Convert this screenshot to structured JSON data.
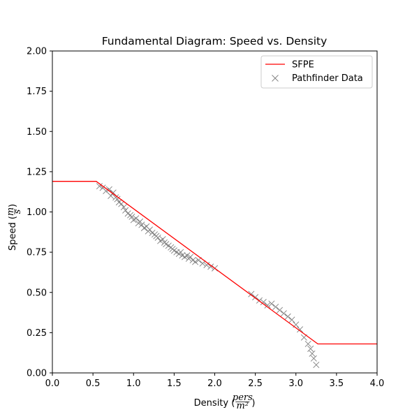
{
  "chart_data": {
    "type": "line+scatter",
    "title": "Fundamental Diagram: Speed vs. Density",
    "xlabel": {
      "prefix": "Density (",
      "numerator": "pers",
      "denominator": "m²",
      "suffix": ")"
    },
    "ylabel": {
      "prefix": "Speed (",
      "numerator": "m",
      "denominator": "s",
      "suffix": ")"
    },
    "xlim": [
      0.0,
      4.0
    ],
    "ylim": [
      0.0,
      2.0
    ],
    "xticks": [
      0.0,
      0.5,
      1.0,
      1.5,
      2.0,
      2.5,
      3.0,
      3.5,
      4.0
    ],
    "xtick_labels": [
      "0.0",
      "0.5",
      "1.0",
      "1.5",
      "2.0",
      "2.5",
      "3.0",
      "3.5",
      "4.0"
    ],
    "yticks": [
      0.0,
      0.25,
      0.5,
      0.75,
      1.0,
      1.25,
      1.5,
      1.75,
      2.0
    ],
    "ytick_labels": [
      "0.00",
      "0.25",
      "0.50",
      "0.75",
      "1.00",
      "1.25",
      "1.50",
      "1.75",
      "2.00"
    ],
    "legend_position": "top-right",
    "series": [
      {
        "name": "SFPE",
        "kind": "line",
        "color": "#ff0000",
        "x": [
          0.0,
          0.54,
          3.27,
          4.0
        ],
        "y": [
          1.19,
          1.19,
          0.18,
          0.18
        ]
      },
      {
        "name": "Pathfinder Data",
        "kind": "scatter",
        "marker": "x",
        "color": "#808080",
        "x": [
          0.58,
          0.62,
          0.66,
          0.7,
          0.72,
          0.75,
          0.78,
          0.8,
          0.82,
          0.85,
          0.88,
          0.9,
          0.93,
          0.96,
          0.98,
          1.0,
          1.03,
          1.06,
          1.08,
          1.1,
          1.13,
          1.16,
          1.18,
          1.2,
          1.23,
          1.26,
          1.28,
          1.3,
          1.33,
          1.36,
          1.38,
          1.4,
          1.43,
          1.46,
          1.48,
          1.5,
          1.53,
          1.56,
          1.58,
          1.6,
          1.63,
          1.66,
          1.68,
          1.7,
          1.73,
          1.76,
          1.8,
          1.85,
          1.9,
          1.95,
          2.0,
          2.45,
          2.5,
          2.55,
          2.6,
          2.65,
          2.7,
          2.75,
          2.8,
          2.85,
          2.9,
          2.95,
          3.0,
          3.05,
          3.1,
          3.15,
          3.18,
          3.2,
          3.22,
          3.25
        ],
        "y": [
          1.16,
          1.15,
          1.13,
          1.14,
          1.1,
          1.12,
          1.09,
          1.08,
          1.06,
          1.05,
          1.03,
          1.01,
          0.99,
          0.98,
          0.97,
          0.95,
          0.96,
          0.93,
          0.94,
          0.92,
          0.9,
          0.91,
          0.88,
          0.89,
          0.87,
          0.86,
          0.85,
          0.84,
          0.82,
          0.83,
          0.81,
          0.8,
          0.79,
          0.78,
          0.77,
          0.76,
          0.75,
          0.74,
          0.75,
          0.73,
          0.72,
          0.73,
          0.71,
          0.72,
          0.7,
          0.69,
          0.7,
          0.68,
          0.67,
          0.66,
          0.65,
          0.49,
          0.47,
          0.45,
          0.44,
          0.42,
          0.43,
          0.41,
          0.39,
          0.37,
          0.35,
          0.33,
          0.3,
          0.27,
          0.22,
          0.18,
          0.15,
          0.12,
          0.09,
          0.05
        ]
      }
    ]
  }
}
